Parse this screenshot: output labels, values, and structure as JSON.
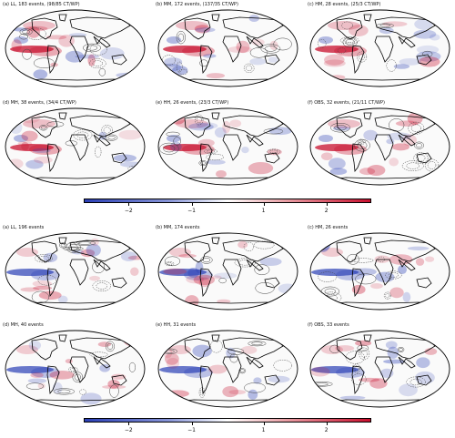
{
  "top_panels": [
    {
      "title": "(a) LL, 183 events, (98/85 CT/WP)",
      "variant": 0
    },
    {
      "title": "(b) MM, 172 events, (137/35 CT/WP)",
      "variant": 1
    },
    {
      "title": "(c) HM, 28 events, (25/3 CT/WP)",
      "variant": 2
    },
    {
      "title": "(d) MH, 38 events, (34/4 CT/WP)",
      "variant": 3
    },
    {
      "title": "(e) HH, 26 events, (23/3 CT/WP)",
      "variant": 4
    },
    {
      "title": "(f) OBS, 32 events, (21/11 CT/WP)",
      "variant": 5
    }
  ],
  "bottom_panels": [
    {
      "title": "(a) LL, 196 events",
      "variant": 6
    },
    {
      "title": "(b) MM, 174 events",
      "variant": 7
    },
    {
      "title": "(c) HM, 26 events",
      "variant": 8
    },
    {
      "title": "(d) MH, 40 events",
      "variant": 9
    },
    {
      "title": "(e) HH, 31 events",
      "variant": 10
    },
    {
      "title": "(f) OBS, 33 events",
      "variant": 11
    }
  ],
  "colorbars": [
    {
      "ticks": [
        "−2",
        "−1",
        "1",
        "2"
      ]
    },
    {
      "ticks": [
        "−2",
        "−1",
        "1",
        "2"
      ]
    }
  ],
  "colors": {
    "negative": "#2a3fb5",
    "positive": "#c8102e",
    "land_line": "#000000",
    "contour": "#444444"
  }
}
